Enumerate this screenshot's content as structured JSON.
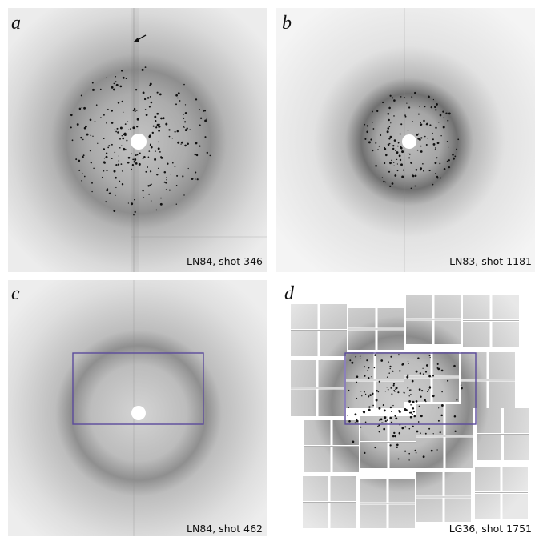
{
  "panels": [
    {
      "letter": "a",
      "caption": "LN84, shot 346"
    },
    {
      "letter": "b",
      "caption": "LN83, shot 1181"
    },
    {
      "letter": "c",
      "caption": "LN84, shot 462"
    },
    {
      "letter": "d",
      "caption": "LG36, shot 1751"
    }
  ]
}
